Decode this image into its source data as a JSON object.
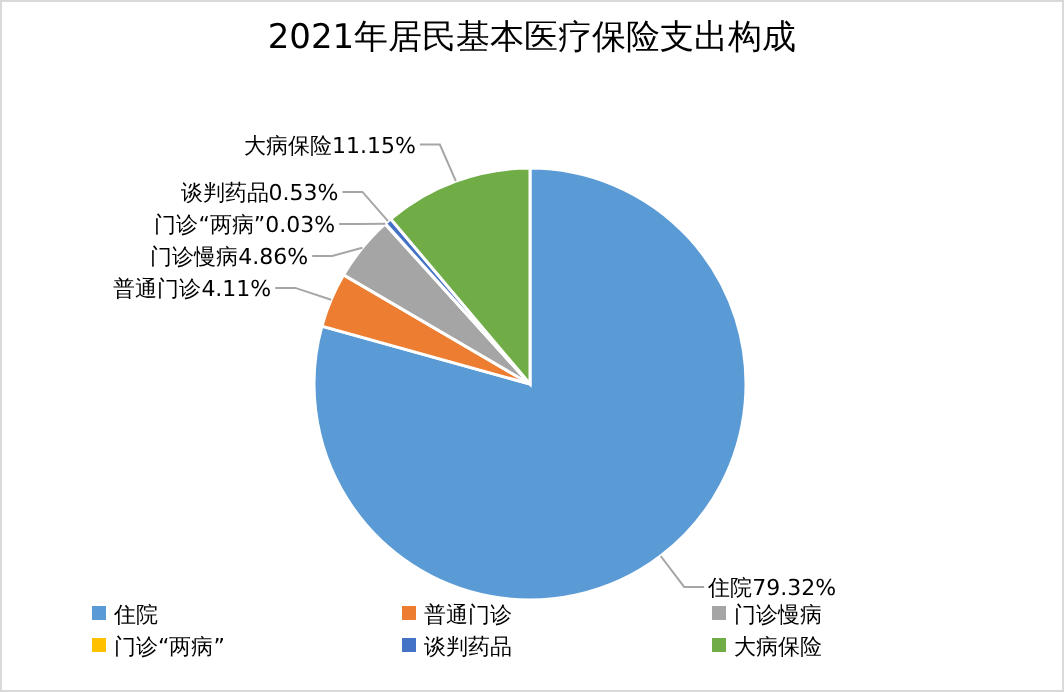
{
  "chart_data": {
    "type": "pie",
    "title": "2021年居民基本医疗保险支出构成",
    "categories": [
      "住院",
      "普通门诊",
      "门诊慢病",
      "门诊“两病”",
      "谈判药品",
      "大病保险"
    ],
    "values": [
      79.32,
      4.11,
      4.86,
      0.03,
      0.53,
      11.15
    ],
    "colors": [
      "#5b9bd5",
      "#ed7d31",
      "#a5a5a5",
      "#ffc000",
      "#4472c4",
      "#70ad47"
    ],
    "value_labels": [
      "住院79.32%",
      "普通门诊4.11%",
      "门诊慢病4.86%",
      "门诊“两病”0.03%",
      "谈判药品0.53%",
      "大病保险11.15%"
    ],
    "legend": "bottom"
  }
}
